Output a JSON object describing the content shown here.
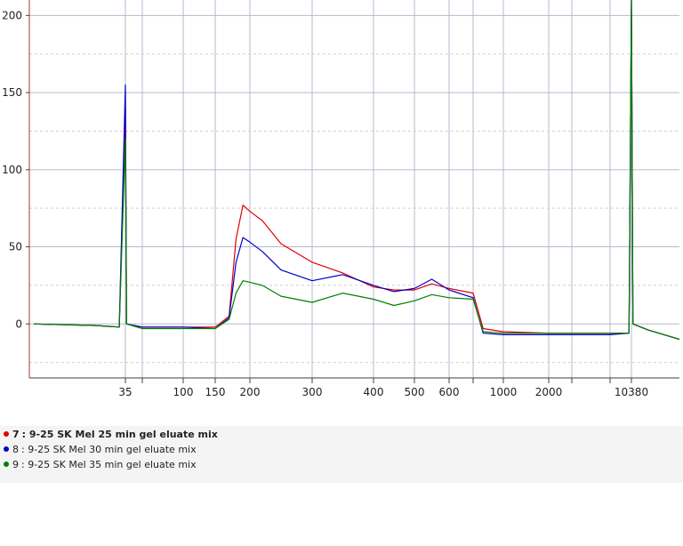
{
  "chart_data": {
    "type": "line",
    "x_scale": "electropherogram (bp markers)",
    "y_ticks": [
      0,
      50,
      100,
      150,
      200
    ],
    "ylim": [
      -35,
      210
    ],
    "x_markers": [
      35,
      100,
      150,
      200,
      300,
      400,
      500,
      600,
      1000,
      2000,
      10380
    ],
    "x_marker_labels": [
      "35",
      "100",
      "150",
      "200",
      "300",
      "400",
      "500",
      "600",
      "1000",
      "2000",
      "10380"
    ],
    "x_ticks": [
      [
        35,
        "35"
      ],
      [
        50,
        ""
      ],
      [
        100,
        "100"
      ],
      [
        150,
        "150"
      ],
      [
        200,
        "200"
      ],
      [
        300,
        "300"
      ],
      [
        400,
        "400"
      ],
      [
        500,
        "500"
      ],
      [
        600,
        "600"
      ],
      [
        700,
        ""
      ],
      [
        1000,
        "1000"
      ],
      [
        2000,
        "2000"
      ],
      [
        3000,
        ""
      ],
      [
        7000,
        ""
      ],
      [
        10380,
        "10380"
      ]
    ],
    "grid": true,
    "series": [
      {
        "name": "9-25 SK Mel 25 min gel eluate mix",
        "index": "7",
        "color": "#e00000",
        "points": [
          [
            20,
            0
          ],
          [
            30,
            -1
          ],
          [
            34,
            -2
          ],
          [
            35,
            140
          ],
          [
            36,
            0
          ],
          [
            50,
            -2
          ],
          [
            100,
            -2
          ],
          [
            150,
            -2
          ],
          [
            170,
            5
          ],
          [
            180,
            55
          ],
          [
            190,
            77
          ],
          [
            200,
            73
          ],
          [
            220,
            67
          ],
          [
            250,
            52
          ],
          [
            300,
            40
          ],
          [
            350,
            33
          ],
          [
            400,
            24
          ],
          [
            450,
            22
          ],
          [
            500,
            22
          ],
          [
            550,
            26
          ],
          [
            600,
            23
          ],
          [
            700,
            20
          ],
          [
            800,
            -3
          ],
          [
            1000,
            -5
          ],
          [
            2000,
            -6
          ],
          [
            7000,
            -6
          ],
          [
            10000,
            -6
          ],
          [
            10380,
            210
          ],
          [
            10400,
            0
          ],
          [
            10600,
            -4
          ],
          [
            11000,
            -10
          ]
        ]
      },
      {
        "name": "9-25 SK Mel 30 min gel eluate mix",
        "index": "8",
        "color": "#0000c8",
        "points": [
          [
            20,
            0
          ],
          [
            30,
            -1
          ],
          [
            34,
            -2
          ],
          [
            35,
            155
          ],
          [
            36,
            0
          ],
          [
            50,
            -2
          ],
          [
            100,
            -2
          ],
          [
            150,
            -3
          ],
          [
            170,
            4
          ],
          [
            180,
            40
          ],
          [
            190,
            56
          ],
          [
            200,
            53
          ],
          [
            220,
            47
          ],
          [
            250,
            35
          ],
          [
            300,
            28
          ],
          [
            350,
            32
          ],
          [
            400,
            25
          ],
          [
            450,
            21
          ],
          [
            500,
            23
          ],
          [
            550,
            29
          ],
          [
            600,
            22
          ],
          [
            700,
            17
          ],
          [
            800,
            -6
          ],
          [
            1000,
            -7
          ],
          [
            2000,
            -7
          ],
          [
            7000,
            -7
          ],
          [
            10000,
            -6
          ],
          [
            10380,
            210
          ],
          [
            10400,
            0
          ],
          [
            10600,
            -4
          ],
          [
            11000,
            -10
          ]
        ]
      },
      {
        "name": "9-25 SK Mel 35 min gel eluate mix",
        "index": "9",
        "color": "#008000",
        "points": [
          [
            20,
            0
          ],
          [
            30,
            -1
          ],
          [
            34,
            -2
          ],
          [
            35,
            120
          ],
          [
            36,
            0
          ],
          [
            50,
            -3
          ],
          [
            100,
            -3
          ],
          [
            150,
            -3
          ],
          [
            170,
            3
          ],
          [
            180,
            20
          ],
          [
            190,
            28
          ],
          [
            200,
            27
          ],
          [
            220,
            25
          ],
          [
            250,
            18
          ],
          [
            300,
            14
          ],
          [
            350,
            20
          ],
          [
            400,
            16
          ],
          [
            450,
            12
          ],
          [
            500,
            15
          ],
          [
            550,
            19
          ],
          [
            600,
            17
          ],
          [
            700,
            16
          ],
          [
            800,
            -5
          ],
          [
            1000,
            -6
          ],
          [
            2000,
            -6
          ],
          [
            7000,
            -6
          ],
          [
            10000,
            -6
          ],
          [
            10380,
            210
          ],
          [
            10400,
            0
          ],
          [
            10600,
            -4
          ],
          [
            11000,
            -10
          ]
        ]
      }
    ],
    "legend_position": "bottom-left"
  }
}
